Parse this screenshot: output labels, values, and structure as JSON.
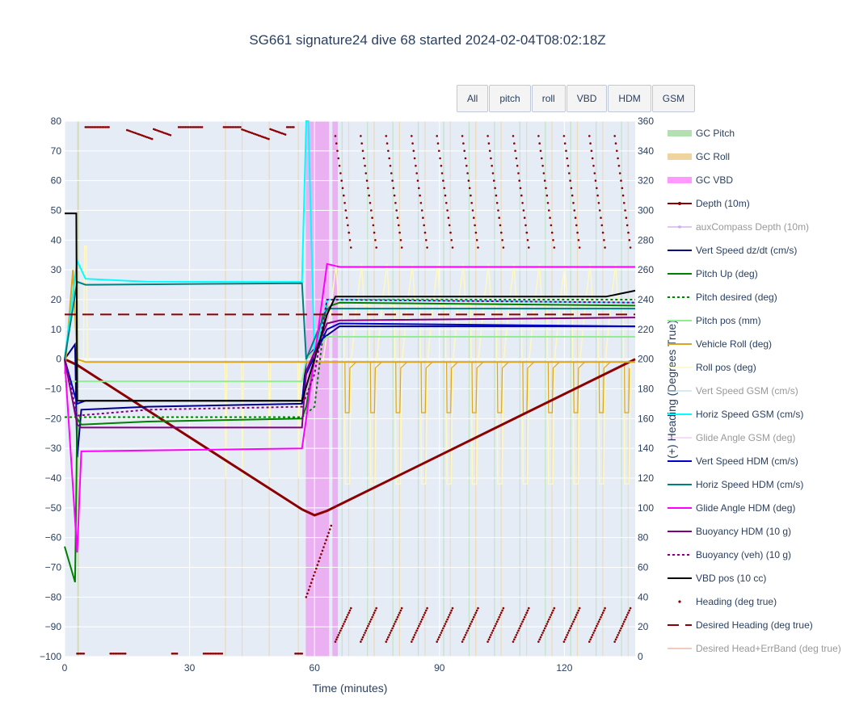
{
  "title": "SG661 signature24 dive 68 started 2024-02-04T08:02:18Z",
  "buttons": [
    "All",
    "pitch",
    "roll",
    "VBD",
    "HDM",
    "GSM"
  ],
  "chart_data": {
    "type": "line",
    "title": "SG661 signature24 dive 68 started 2024-02-04T08:02:18Z",
    "xlabel": "Time (minutes)",
    "ylabel": "",
    "y2label": "(+) Heading (Degrees True)",
    "xlim": [
      0,
      137
    ],
    "ylim": [
      -100,
      80
    ],
    "y2lim": [
      0,
      360
    ],
    "xticks": [
      0,
      30,
      60,
      90,
      120
    ],
    "yticks": [
      80,
      70,
      60,
      50,
      40,
      30,
      20,
      10,
      0,
      -10,
      -20,
      -30,
      -40,
      -50,
      -60,
      -70,
      -80,
      -90,
      -100
    ],
    "y2ticks": [
      360,
      340,
      320,
      300,
      280,
      260,
      240,
      220,
      200,
      180,
      160,
      140,
      120,
      100,
      80,
      60,
      40,
      20,
      0
    ],
    "legend_position": "right",
    "gc_vbd_bands": [
      [
        57.9,
        63.5
      ],
      [
        64.3,
        65.6
      ]
    ],
    "series": [
      {
        "name": "GC Pitch",
        "color": "#b3e0b3",
        "style": "band",
        "visible": true
      },
      {
        "name": "GC Roll",
        "color": "#f0d4a0",
        "style": "band",
        "visible": true
      },
      {
        "name": "GC VBD",
        "color": "#ff99ff",
        "style": "band",
        "visible": true
      },
      {
        "name": "Depth (10m)",
        "color": "#8b0000",
        "style": "line-marker",
        "visible": true,
        "x": [
          0,
          3,
          57,
          60,
          63,
          137
        ],
        "y": [
          0,
          -2,
          -50.5,
          -52.5,
          -51,
          0
        ]
      },
      {
        "name": "auxCompass Depth (10m)",
        "color": "#c38ee6",
        "style": "line-marker",
        "visible": false
      },
      {
        "name": "Vert Speed dz/dt (cm/s)",
        "color": "#00008b",
        "style": "line",
        "visible": true,
        "x": [
          0,
          2.5,
          3,
          4,
          20,
          57,
          58,
          62,
          64,
          66,
          137
        ],
        "y": [
          0,
          5,
          -33,
          -17,
          -16,
          -15,
          0,
          7,
          9,
          11,
          11
        ]
      },
      {
        "name": "Pitch Up (deg)",
        "color": "#008000",
        "style": "line",
        "visible": true,
        "x": [
          0,
          2.5,
          3,
          4,
          20,
          57,
          58,
          62,
          64,
          66,
          137
        ],
        "y": [
          -63,
          -75,
          -20,
          -22,
          -21,
          -20,
          -16,
          15,
          18,
          19,
          18
        ]
      },
      {
        "name": "Pitch desired (deg)",
        "color": "#008000",
        "style": "dot",
        "visible": true,
        "x": [
          0,
          57,
          60,
          63,
          137
        ],
        "y": [
          -19.5,
          -19.5,
          -16,
          20,
          20
        ]
      },
      {
        "name": "Pitch pos (mm)",
        "color": "#90ee90",
        "style": "line",
        "visible": true,
        "x": [
          0,
          57,
          58,
          63,
          137
        ],
        "y": [
          -7.5,
          -7.5,
          0,
          7.5,
          7.5
        ]
      },
      {
        "name": "Vehicle Roll (deg)",
        "color": "#daa520",
        "style": "line",
        "visible": true,
        "x": [
          0,
          2,
          3,
          5,
          57,
          137
        ],
        "y": [
          -5,
          30,
          0,
          -1,
          -1,
          -1
        ]
      },
      {
        "name": "Roll pos (deg)",
        "color": "#fffacd",
        "style": "line",
        "visible": true
      },
      {
        "name": "Vert Speed GSM (cm/s)",
        "color": "#add8e6",
        "style": "line",
        "visible": false
      },
      {
        "name": "Horiz Speed GSM (cm/s)",
        "color": "#00ffff",
        "style": "line",
        "visible": true,
        "x": [
          0,
          3,
          5,
          20,
          57,
          58,
          58.5,
          60,
          63,
          137
        ],
        "y": [
          0,
          33,
          27,
          26,
          26,
          80,
          80,
          0,
          20,
          19
        ]
      },
      {
        "name": "Glide Angle GSM (deg)",
        "color": "#eebbee",
        "style": "line",
        "visible": false
      },
      {
        "name": "Vert Speed HDM (cm/s)",
        "color": "#0000cd",
        "style": "line",
        "visible": true,
        "x": [
          0,
          3,
          5,
          57,
          58,
          63,
          66,
          137
        ],
        "y": [
          0,
          -15,
          -14,
          -14,
          -5,
          10,
          12,
          11
        ]
      },
      {
        "name": "Horiz Speed HDM (cm/s)",
        "color": "#008080",
        "style": "line",
        "visible": true,
        "x": [
          0,
          3,
          5,
          57,
          58,
          63,
          137
        ],
        "y": [
          0,
          26,
          25,
          25.5,
          0,
          17,
          17
        ]
      },
      {
        "name": "Glide Angle HDM (deg)",
        "color": "#ff00ff",
        "style": "line",
        "visible": true,
        "x": [
          0,
          3,
          4,
          57,
          58,
          63,
          66,
          137
        ],
        "y": [
          0,
          -65,
          -31,
          -30,
          -20,
          32,
          31,
          31
        ]
      },
      {
        "name": "Buoyancy HDM (10 g)",
        "color": "#800080",
        "style": "line",
        "visible": true,
        "x": [
          0,
          3,
          4,
          57,
          58,
          63,
          66,
          137
        ],
        "y": [
          0,
          -22,
          -23,
          -23,
          -4,
          12,
          13,
          14
        ]
      },
      {
        "name": "Buoyancy (veh) (10 g)",
        "color": "#800080",
        "style": "dot",
        "visible": true,
        "x": [
          0,
          3,
          20,
          57,
          60,
          63,
          137
        ],
        "y": [
          0,
          -19,
          -17,
          -16,
          -5,
          20,
          19
        ]
      },
      {
        "name": "VBD pos (10 cc)",
        "color": "#000000",
        "style": "line",
        "visible": true,
        "x": [
          0,
          2.8,
          3,
          57,
          60,
          63,
          65,
          130,
          137
        ],
        "y": [
          49,
          49,
          -14,
          -14,
          0,
          15,
          21,
          21,
          23
        ]
      },
      {
        "name": "Heading (deg true)",
        "color": "#8b0000",
        "style": "markers",
        "visible": true,
        "axis": "y2"
      },
      {
        "name": "Desired Heading (deg true)",
        "color": "#8b0000",
        "style": "dash",
        "visible": true,
        "axis": "y2",
        "x": [
          0,
          137
        ],
        "y": [
          230,
          230
        ]
      },
      {
        "name": "Desired Head+ErrBand (deg true)",
        "color": "#e9967a",
        "style": "line",
        "visible": false,
        "axis": "y2"
      }
    ]
  }
}
